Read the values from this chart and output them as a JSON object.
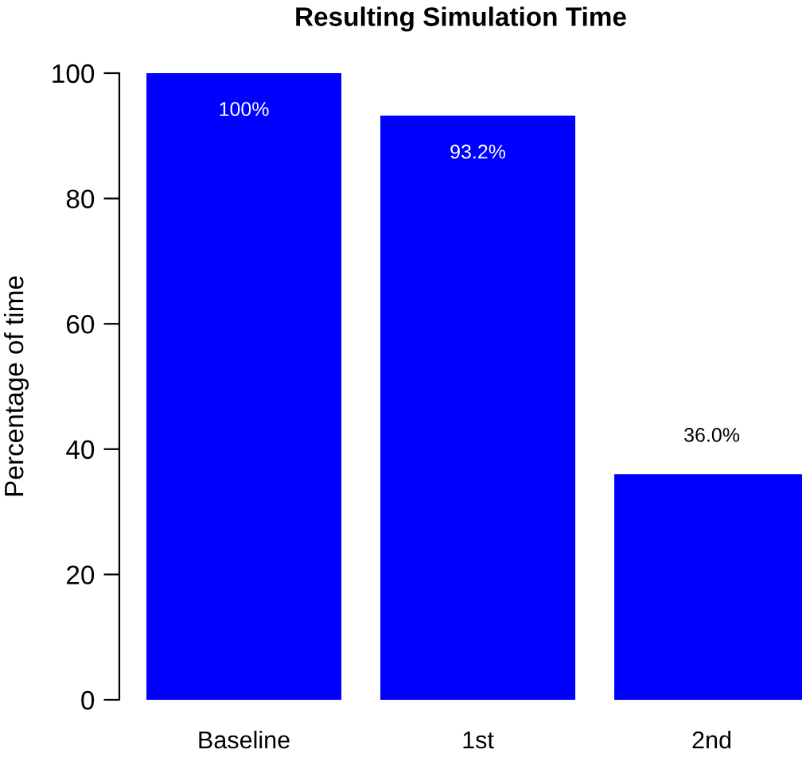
{
  "chart_data": {
    "type": "bar",
    "title": "Resulting Simulation Time",
    "ylabel": "Percentage of time",
    "categories": [
      "Baseline",
      "1st",
      "2nd"
    ],
    "values": [
      100,
      93.2,
      36.0
    ],
    "value_labels": [
      "100%",
      "93.2%",
      "36.0%"
    ],
    "color": "#0000ff",
    "ylim": [
      0,
      100
    ],
    "yticks": [
      0,
      20,
      40,
      60,
      80,
      100
    ],
    "grid": false,
    "legend": false
  }
}
